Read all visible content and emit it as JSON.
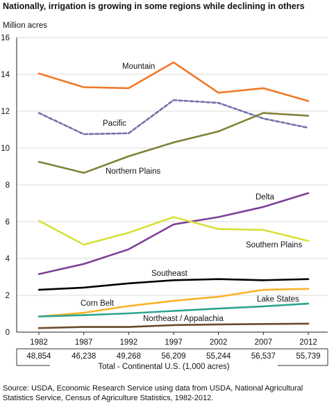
{
  "header": {
    "title": "Nationally, irrigation is growing in some regions while declining in others",
    "unit": "Million acres"
  },
  "chart_data": {
    "type": "line",
    "title": "Nationally, irrigation is growing in some regions while declining in others",
    "ylabel": "Million acres",
    "x": [
      "1982",
      "1987",
      "1992",
      "1997",
      "2002",
      "2007",
      "2012"
    ],
    "ylim": [
      0,
      16
    ],
    "yticks": [
      "0",
      "2",
      "4",
      "6",
      "8",
      "10",
      "12",
      "14",
      "16"
    ],
    "grid": true,
    "series": [
      {
        "name": "Mountain",
        "color": "#f07828",
        "dash": false,
        "values": [
          14.05,
          13.3,
          13.25,
          14.65,
          13.0,
          13.25,
          12.55
        ]
      },
      {
        "name": "Pacific",
        "color": "#7270aa",
        "dash": true,
        "values": [
          11.9,
          10.75,
          10.8,
          12.6,
          12.45,
          11.6,
          11.1
        ]
      },
      {
        "name": "Northern Plains",
        "color": "#7f8237",
        "dash": false,
        "values": [
          9.25,
          8.65,
          9.55,
          10.3,
          10.9,
          11.9,
          11.75
        ]
      },
      {
        "name": "Delta",
        "color": "#7d3f98",
        "dash": false,
        "values": [
          3.15,
          3.7,
          4.5,
          5.85,
          6.25,
          6.8,
          7.55
        ]
      },
      {
        "name": "Southern Plains",
        "color": "#d8e038",
        "dash": false,
        "values": [
          6.05,
          4.75,
          5.4,
          6.25,
          5.6,
          5.55,
          4.95
        ]
      },
      {
        "name": "Southeast",
        "color": "#000000",
        "dash": false,
        "values": [
          2.3,
          2.42,
          2.65,
          2.82,
          2.88,
          2.82,
          2.88
        ]
      },
      {
        "name": "Corn Belt",
        "color": "#fbb228",
        "dash": false,
        "values": [
          0.85,
          1.05,
          1.42,
          1.7,
          1.92,
          2.3,
          2.35
        ]
      },
      {
        "name": "Lake States",
        "color": "#2ba48f",
        "dash": false,
        "values": [
          0.85,
          0.92,
          1.02,
          1.15,
          1.28,
          1.4,
          1.55
        ]
      },
      {
        "name": "Northeast / Appalachia",
        "color": "#6b4a2a",
        "dash": false,
        "values": [
          0.22,
          0.28,
          0.28,
          0.38,
          0.42,
          0.44,
          0.46
        ]
      }
    ],
    "series_labels": [
      "Mountain",
      "Pacific",
      "Northern Plains",
      "Delta",
      "Southern Plains",
      "Southeast",
      "Corn Belt",
      "Lake States",
      "Northeast / Appalachia"
    ],
    "totals": {
      "label": "Total - Continental U.S.  (1,000 acres)",
      "values": [
        "48,854",
        "46,238",
        "49,268",
        "56,209",
        "55,244",
        "56,537",
        "55,739"
      ]
    }
  },
  "footer": {
    "source": "Source:  USDA, Economic Research Service using data from USDA, National Agricultural Statistics Service, Census of Agriculture Statistics, 1982-2012."
  }
}
